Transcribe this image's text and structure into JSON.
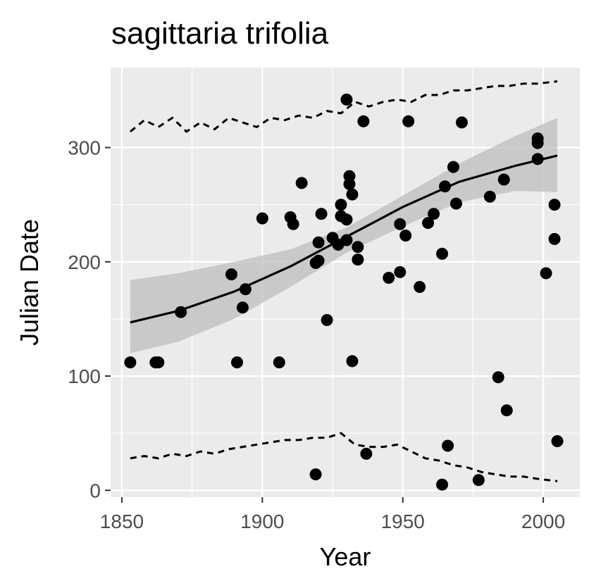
{
  "chart_data": {
    "type": "scatter",
    "title": "sagittaria trifolia",
    "xlabel": "Year",
    "ylabel": "Julian Date",
    "xlim": [
      1846,
      2013
    ],
    "ylim": [
      -6,
      370
    ],
    "x_ticks": [
      1850,
      1900,
      1950,
      2000
    ],
    "y_ticks": [
      0,
      100,
      200,
      300
    ],
    "grid": true,
    "legend": "none",
    "colors": {
      "panel": "#ebebeb",
      "grid": "#ffffff",
      "points": "#000000",
      "ribbon": "#bdbdbd",
      "tick_text": "#4d4d4d"
    },
    "points": {
      "x": [
        1853,
        1862,
        1863,
        1871,
        1889,
        1891,
        1893,
        1894,
        1900,
        1906,
        1910,
        1911,
        1914,
        1919,
        1919,
        1920,
        1920,
        1921,
        1923,
        1925,
        1927,
        1928,
        1928,
        1930,
        1930,
        1930,
        1931,
        1931,
        1932,
        1932,
        1934,
        1934,
        1936,
        1937,
        1945,
        1949,
        1949,
        1951,
        1952,
        1956,
        1959,
        1961,
        1964,
        1964,
        1965,
        1966,
        1968,
        1969,
        1971,
        1977,
        1981,
        1984,
        1986,
        1987,
        1998,
        1998,
        1998,
        2001,
        2004,
        2004,
        2005
      ],
      "y": [
        112,
        112,
        112,
        156,
        189,
        112,
        160,
        176,
        238,
        112,
        239,
        233,
        269,
        14,
        199,
        201,
        217,
        242,
        149,
        221,
        215,
        240,
        250,
        237,
        342,
        219,
        268,
        275,
        113,
        259,
        213,
        202,
        323,
        32,
        186,
        191,
        233,
        223,
        323,
        178,
        234,
        242,
        207,
        5,
        266,
        39,
        283,
        251,
        322,
        9,
        257,
        99,
        272,
        70,
        290,
        304,
        308,
        190,
        220,
        250,
        43
      ]
    },
    "smooth": {
      "x": [
        1853,
        1870,
        1890,
        1910,
        1930,
        1950,
        1970,
        1990,
        2005
      ],
      "y": [
        147,
        157,
        174,
        196,
        222,
        248,
        270,
        284,
        293
      ]
    },
    "ribbon": {
      "x": [
        1853,
        1870,
        1890,
        1910,
        1930,
        1950,
        1970,
        1990,
        2005
      ],
      "upper": [
        184,
        190,
        200,
        211,
        230,
        258,
        286,
        310,
        326
      ],
      "lower": [
        120,
        130,
        150,
        178,
        208,
        231,
        252,
        262,
        261
      ]
    },
    "upper_dashed": {
      "x": [
        1853,
        1858,
        1863,
        1868,
        1873,
        1878,
        1883,
        1888,
        1893,
        1898,
        1903,
        1908,
        1913,
        1918,
        1923,
        1928,
        1933,
        1938,
        1943,
        1948,
        1953,
        1958,
        1963,
        1968,
        1973,
        1978,
        1983,
        1988,
        1993,
        1998,
        2005
      ],
      "y": [
        314,
        324,
        318,
        326,
        314,
        322,
        316,
        326,
        322,
        318,
        326,
        324,
        328,
        326,
        332,
        330,
        340,
        336,
        340,
        342,
        340,
        346,
        346,
        350,
        350,
        352,
        354,
        354,
        356,
        356,
        358
      ]
    },
    "lower_dashed": {
      "x": [
        1853,
        1858,
        1863,
        1868,
        1873,
        1878,
        1883,
        1888,
        1893,
        1898,
        1903,
        1908,
        1913,
        1918,
        1923,
        1928,
        1933,
        1938,
        1943,
        1948,
        1953,
        1958,
        1963,
        1968,
        1973,
        1978,
        1983,
        1988,
        1993,
        1998,
        2005
      ],
      "y": [
        28,
        30,
        28,
        32,
        30,
        34,
        32,
        36,
        38,
        40,
        42,
        44,
        44,
        46,
        46,
        50,
        40,
        38,
        38,
        40,
        34,
        28,
        26,
        22,
        20,
        16,
        14,
        12,
        12,
        10,
        8
      ]
    }
  }
}
